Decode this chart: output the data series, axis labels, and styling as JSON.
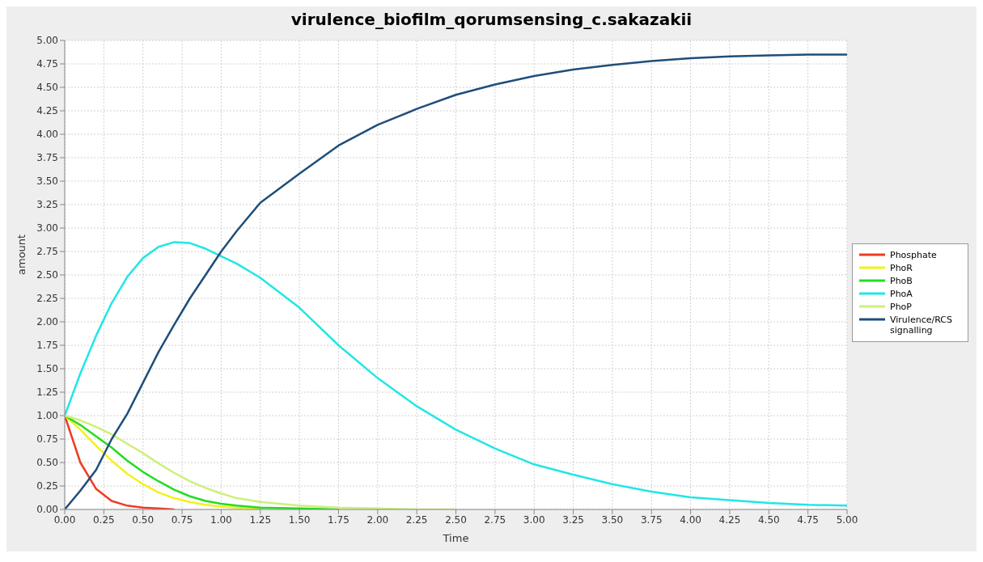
{
  "chart_data": {
    "type": "line",
    "title": "virulence_biofilm_qorumsensing_c.sakazakii",
    "xlabel": "Time",
    "ylabel": "amount",
    "x": [
      0,
      0.1,
      0.2,
      0.3,
      0.4,
      0.5,
      0.6,
      0.7,
      0.8,
      0.9,
      1.0,
      1.1,
      1.25,
      1.5,
      1.75,
      2.0,
      2.25,
      2.5,
      2.75,
      3.0,
      3.25,
      3.5,
      3.75,
      4.0,
      4.25,
      4.5,
      4.75,
      5.0
    ],
    "series": [
      {
        "name": "Phosphate",
        "color": "#ef3b24",
        "values": [
          1,
          0.5,
          0.22,
          0.09,
          0.04,
          0.02,
          0.01,
          0,
          null,
          null,
          null,
          null,
          null,
          null,
          null,
          null,
          null,
          null,
          null,
          null,
          null,
          null,
          null,
          null,
          null,
          null,
          null,
          null
        ]
      },
      {
        "name": "PhoR",
        "color": "#f2f21a",
        "values": [
          1,
          0.85,
          0.68,
          0.52,
          0.38,
          0.27,
          0.18,
          0.12,
          0.08,
          0.05,
          0.03,
          0.02,
          0.01,
          null,
          null,
          null,
          null,
          null,
          null,
          null,
          null,
          null,
          null,
          null,
          null,
          null,
          null,
          null
        ]
      },
      {
        "name": "PhoB",
        "color": "#22dd22",
        "values": [
          1,
          0.9,
          0.78,
          0.66,
          0.52,
          0.4,
          0.3,
          0.21,
          0.14,
          0.09,
          0.06,
          0.04,
          0.02,
          0.01,
          0,
          null,
          null,
          null,
          null,
          null,
          null,
          null,
          null,
          null,
          null,
          null,
          null,
          null
        ]
      },
      {
        "name": "PhoA",
        "color": "#22e6e6",
        "values": [
          1,
          1.45,
          1.85,
          2.2,
          2.48,
          2.68,
          2.8,
          2.85,
          2.84,
          2.78,
          2.7,
          2.62,
          2.47,
          2.15,
          1.75,
          1.4,
          1.1,
          0.85,
          0.65,
          0.48,
          0.37,
          0.27,
          0.19,
          0.13,
          0.1,
          0.07,
          0.05,
          0.04
        ]
      },
      {
        "name": "PhoP",
        "color": "#ccf07a",
        "values": [
          1,
          0.95,
          0.88,
          0.8,
          0.7,
          0.6,
          0.49,
          0.39,
          0.3,
          0.23,
          0.17,
          0.12,
          0.08,
          0.04,
          0.02,
          0.01,
          0,
          0,
          null,
          null,
          null,
          null,
          null,
          null,
          null,
          null,
          null,
          null
        ]
      },
      {
        "name": "Virulence/RCS signalling",
        "color": "#1f4e79",
        "values": [
          0,
          0.2,
          0.42,
          0.75,
          1.02,
          1.35,
          1.68,
          1.97,
          2.25,
          2.5,
          2.75,
          2.97,
          3.27,
          3.58,
          3.88,
          4.1,
          4.27,
          4.42,
          4.53,
          4.62,
          4.69,
          4.74,
          4.78,
          4.81,
          4.83,
          4.84,
          4.85,
          4.85
        ]
      }
    ],
    "xlim": [
      0,
      5
    ],
    "ylim": [
      0,
      5
    ],
    "xticks": [
      {
        "value": 0,
        "label": "0.00"
      },
      {
        "value": 0.25,
        "label": "0.25"
      },
      {
        "value": 0.5,
        "label": "0.50"
      },
      {
        "value": 0.75,
        "label": "0.75"
      },
      {
        "value": 1,
        "label": "1.00"
      },
      {
        "value": 1.25,
        "label": "1.25"
      },
      {
        "value": 1.5,
        "label": "1.50"
      },
      {
        "value": 1.75,
        "label": "1.75"
      },
      {
        "value": 2,
        "label": "2.00"
      },
      {
        "value": 2.25,
        "label": "2.25"
      },
      {
        "value": 2.5,
        "label": "2.50"
      },
      {
        "value": 2.75,
        "label": "2.75"
      },
      {
        "value": 3,
        "label": "3.00"
      },
      {
        "value": 3.25,
        "label": "3.25"
      },
      {
        "value": 3.5,
        "label": "3.50"
      },
      {
        "value": 3.75,
        "label": "3.75"
      },
      {
        "value": 4,
        "label": "4.00"
      },
      {
        "value": 4.25,
        "label": "4.25"
      },
      {
        "value": 4.5,
        "label": "4.50"
      },
      {
        "value": 4.75,
        "label": "4.75"
      },
      {
        "value": 5,
        "label": "5.00"
      }
    ],
    "yticks": [
      {
        "value": 0,
        "label": "0.00"
      },
      {
        "value": 0.25,
        "label": "0.25"
      },
      {
        "value": 0.5,
        "label": "0.50"
      },
      {
        "value": 0.75,
        "label": "0.75"
      },
      {
        "value": 1,
        "label": "1.00"
      },
      {
        "value": 1.25,
        "label": "1.25"
      },
      {
        "value": 1.5,
        "label": "1.50"
      },
      {
        "value": 1.75,
        "label": "1.75"
      },
      {
        "value": 2,
        "label": "2.00"
      },
      {
        "value": 2.25,
        "label": "2.25"
      },
      {
        "value": 2.5,
        "label": "2.50"
      },
      {
        "value": 2.75,
        "label": "2.75"
      },
      {
        "value": 3,
        "label": "3.00"
      },
      {
        "value": 3.25,
        "label": "3.25"
      },
      {
        "value": 3.5,
        "label": "3.50"
      },
      {
        "value": 3.75,
        "label": "3.75"
      },
      {
        "value": 4,
        "label": "4.00"
      },
      {
        "value": 4.25,
        "label": "4.25"
      },
      {
        "value": 4.5,
        "label": "4.50"
      },
      {
        "value": 4.75,
        "label": "4.75"
      },
      {
        "value": 5,
        "label": "5.00"
      }
    ],
    "grid": true,
    "legend": "right",
    "marker": "none",
    "line_style": "solid"
  }
}
